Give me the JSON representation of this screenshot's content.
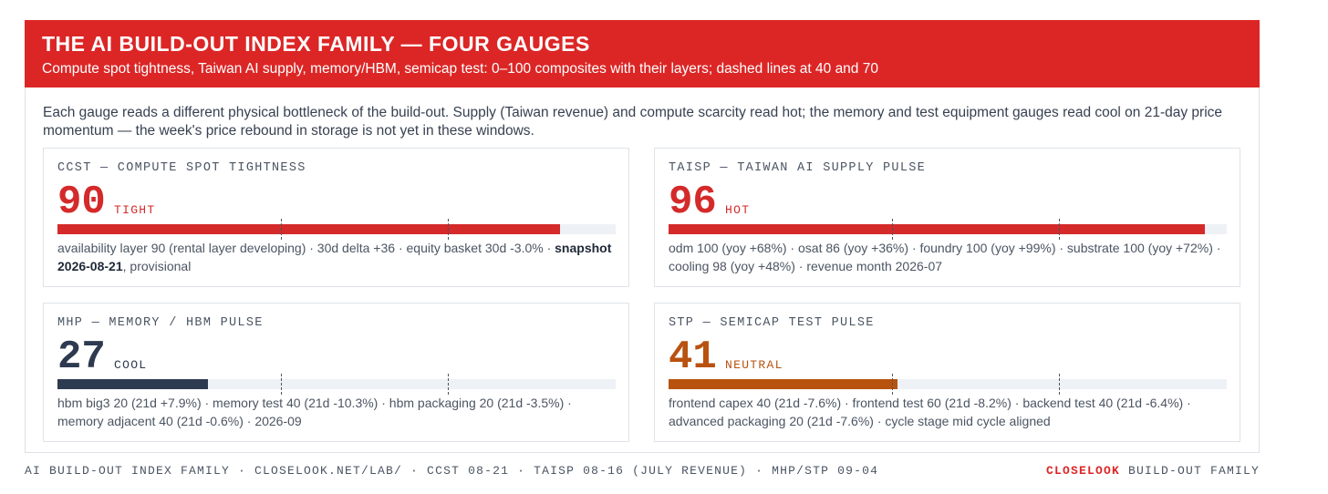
{
  "header": {
    "title": "THE AI BUILD-OUT INDEX FAMILY — FOUR GAUGES",
    "subtitle": "Compute spot tightness, Taiwan AI supply, memory/HBM, semicap test: 0–100 composites with their layers; dashed lines at 40 and 70"
  },
  "intro": "Each gauge reads a different physical bottleneck of the build-out. Supply (Taiwan revenue) and compute scarcity read hot; the memory and test equipment gauges read cool on 21-day price momentum — the week's price rebound in storage is not yet in these windows.",
  "scale": {
    "min": 0,
    "max": 100,
    "thresholds": [
      40,
      70
    ]
  },
  "gauges": [
    {
      "name": "CCST — COMPUTE SPOT TIGHTNESS",
      "value": 90,
      "state": "TIGHT",
      "color": "#d42a2a",
      "detail": [
        {
          "text": "availability layer 90 (rental layer developing) · 30d delta +36 · equity basket 30d -3.0% · ",
          "bold": false
        },
        {
          "text": "snapshot 2026-08-21",
          "bold": true
        },
        {
          "text": ", provisional",
          "bold": false
        }
      ]
    },
    {
      "name": "TAISP — TAIWAN AI SUPPLY PULSE",
      "value": 96,
      "state": "HOT",
      "color": "#d42a2a",
      "detail": [
        {
          "text": "odm 100 (yoy +68%) · osat 86 (yoy +36%) · foundry 100 (yoy +99%) · substrate 100 (yoy +72%) · cooling 98 (yoy +48%) · revenue month 2026-07",
          "bold": false
        }
      ]
    },
    {
      "name": "MHP — MEMORY / HBM PULSE",
      "value": 27,
      "state": "COOL",
      "color": "#2e3a4f",
      "detail": [
        {
          "text": "hbm big3 20 (21d +7.9%) · memory test 40 (21d -10.3%) · hbm packaging 20 (21d -3.5%) · memory adjacent 40 (21d -0.6%) · 2026-09",
          "bold": false
        }
      ]
    },
    {
      "name": "STP — SEMICAP TEST PULSE",
      "value": 41,
      "state": "NEUTRAL",
      "color": "#b8520f",
      "detail": [
        {
          "text": "frontend capex 40 (21d -7.6%) · frontend test 60 (21d -8.2%) · backend test 40 (21d -6.4%) · advanced packaging 20 (21d -7.6%) · cycle stage mid cycle aligned",
          "bold": false
        }
      ]
    }
  ],
  "footer": {
    "left": "AI BUILD-OUT INDEX FAMILY · CLOSELOOK.NET/LAB/ · CCST 08-21 · TAISP 08-16 (JULY REVENUE) · MHP/STP 09-04",
    "brand": "CLOSELOOK",
    "brand_rest": "BUILD-OUT FAMILY"
  }
}
